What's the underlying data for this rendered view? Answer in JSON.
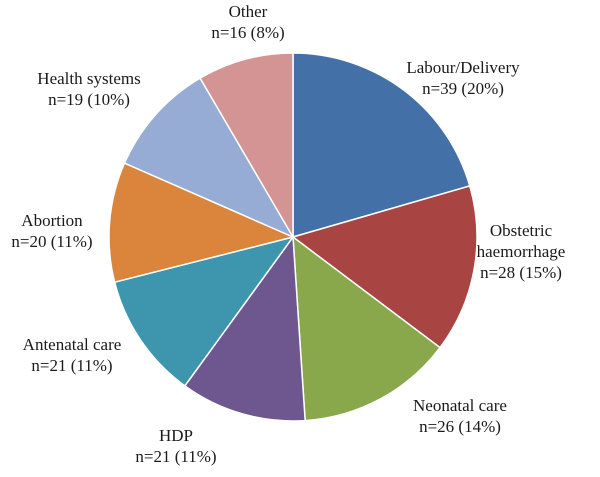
{
  "chart_data": {
    "type": "pie",
    "start_angle_deg": 0,
    "direction": "clockwise",
    "slices": [
      {
        "label": "Labour/Delivery",
        "count_label": "n=39 (20%)",
        "value": 39,
        "percent": 20,
        "color": "#4470A8"
      },
      {
        "label": "Obstetric haemorrhage",
        "count_label": "n=28 (15%)",
        "value": 28,
        "percent": 15,
        "color": "#A84542"
      },
      {
        "label": "Neonatal care",
        "count_label": "n=26 (14%)",
        "value": 26,
        "percent": 14,
        "color": "#88A84B"
      },
      {
        "label": "HDP",
        "count_label": "n=21 (11%)",
        "value": 21,
        "percent": 11,
        "color": "#6E568E"
      },
      {
        "label": "Antenatal care",
        "count_label": "n=21 (11%)",
        "value": 21,
        "percent": 11,
        "color": "#3D96AD"
      },
      {
        "label": "Abortion",
        "count_label": "n=20 (11%)",
        "value": 20,
        "percent": 11,
        "color": "#DB853C"
      },
      {
        "label": "Health systems",
        "count_label": "n=19 (10%)",
        "value": 19,
        "percent": 10,
        "color": "#96ACD4"
      },
      {
        "label": "Other",
        "count_label": "n=16 (8%)",
        "value": 16,
        "percent": 8,
        "color": "#D39493"
      }
    ]
  }
}
